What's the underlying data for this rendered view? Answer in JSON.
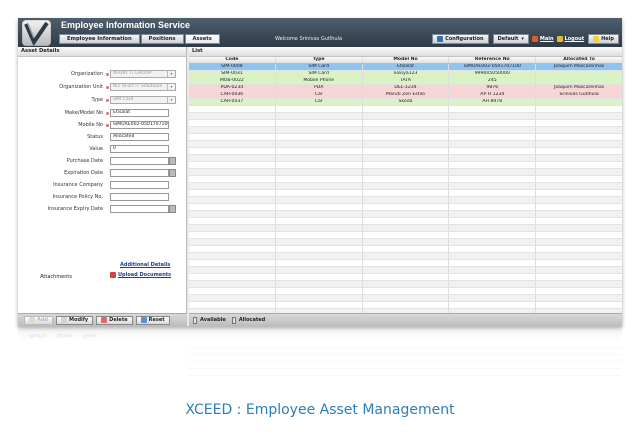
{
  "header": {
    "title": "Employee Information Service",
    "tabs": [
      {
        "label": "Employee Information"
      },
      {
        "label": "Positions"
      },
      {
        "label": "Assets"
      }
    ],
    "welcome": "Welcome Srinivas Gutlhula",
    "toolbar": {
      "configuration": "Configuration",
      "default": "Default",
      "main": "Main",
      "logout": "Logout",
      "help": "Help"
    }
  },
  "left_pane": {
    "title": "Asset Details",
    "fields": [
      {
        "label": "Organization",
        "value": "XFORT IT GROUP",
        "type": "select"
      },
      {
        "label": "Organization Unit",
        "value": "Nic XFort IT Solutions",
        "type": "select"
      },
      {
        "label": "Type",
        "value": "SIM Card",
        "type": "select"
      },
      {
        "label": "Make/Model No",
        "value": "Etisalat",
        "type": "input"
      },
      {
        "label": "Mobile No",
        "value": "SIMUAE002-0501707100",
        "type": "input"
      },
      {
        "label": "Status",
        "value": "Allocated",
        "type": "input"
      },
      {
        "label": "Value",
        "value": "0",
        "type": "input"
      },
      {
        "label": "Purchase Date",
        "value": "",
        "type": "date"
      },
      {
        "label": "Expiration Date",
        "value": "",
        "type": "date"
      },
      {
        "label": "Insurance Company",
        "value": "",
        "type": "input"
      },
      {
        "label": "Insurance Policy No.",
        "value": "",
        "type": "input"
      },
      {
        "label": "Insurance Expiry Date",
        "value": "",
        "type": "date"
      }
    ],
    "additional_details": "Additional Details",
    "attachments_label": "Attachments",
    "upload_label": "Upload Documents",
    "actions": {
      "add": "Add",
      "modify": "Modify",
      "delete": "Delete",
      "reset": "Reset"
    }
  },
  "right_pane": {
    "title": "List",
    "columns": [
      "Code",
      "Type",
      "Model No",
      "Reference No",
      "Allocated To"
    ],
    "rows": [
      {
        "state": "selected",
        "cells": [
          "SIM-0008",
          "SIM Card",
          "Etisalat",
          "SIMUAE002-0501707100",
          "Joaquim Mascarenhas"
        ]
      },
      {
        "state": "available",
        "cells": [
          "SIM-0031",
          "SIM Card",
          "nokiya123",
          "999005050000",
          ""
        ]
      },
      {
        "state": "available",
        "cells": [
          "MOB-0022",
          "Mobile Phone",
          "TATA",
          "245",
          ""
        ]
      },
      {
        "state": "allocated",
        "cells": [
          "PDA-0234",
          "PDA",
          "DEL-1234",
          "9876",
          "Joaquim Mascarenhas"
        ]
      },
      {
        "state": "allocated",
        "cells": [
          "CAR-0036",
          "Car",
          "Maruti Zen Estilo",
          "AP H 1234",
          "Srinivas Gutlhula"
        ]
      },
      {
        "state": "available",
        "cells": [
          "CAR-0037",
          "Car",
          "Skoda",
          "AH 8978",
          ""
        ]
      }
    ],
    "legend": {
      "available": "Available",
      "allocated": "Allocated"
    }
  },
  "colors": {
    "selected": "#8fc3f0",
    "available": "#d9f3c7",
    "allocated": "#f7d4d6",
    "caption": "#2a7fb8"
  },
  "caption": "XCEED : Employee Asset Management"
}
